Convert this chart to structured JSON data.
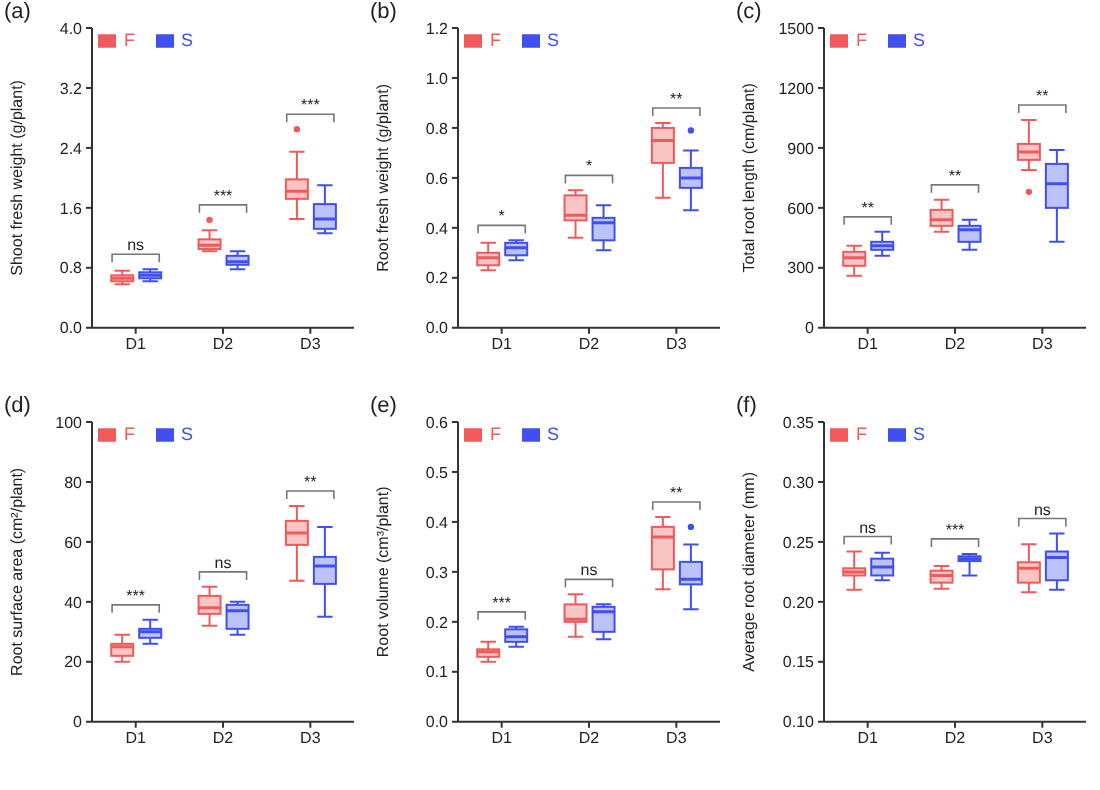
{
  "chart_data": [
    {
      "type": "box",
      "title": "(a)",
      "ylabel": "Shoot fresh weight (g/plant)",
      "categories": [
        "D1",
        "D2",
        "D3"
      ],
      "ylim": [
        0,
        4
      ],
      "yticks": [
        {
          "value": 0,
          "label": "0.0"
        },
        0.8,
        1.6,
        2.4,
        3.2,
        {
          "value": 4,
          "label": "4.0"
        }
      ],
      "legend": "top left",
      "annotations": [
        "ns",
        "***",
        "***"
      ],
      "series": [
        {
          "name": "F",
          "color": "#f05a5a",
          "boxes": [
            {
              "low": 0.58,
              "q1": 0.62,
              "median": 0.66,
              "q3": 0.7,
              "high": 0.76
            },
            {
              "low": 1.02,
              "q1": 1.05,
              "median": 1.1,
              "q3": 1.18,
              "high": 1.3,
              "outliers": [
                1.44
              ]
            },
            {
              "low": 1.45,
              "q1": 1.72,
              "median": 1.82,
              "q3": 1.98,
              "high": 2.35,
              "outliers": [
                2.65
              ]
            }
          ]
        },
        {
          "name": "S",
          "color": "#3f4ff0",
          "boxes": [
            {
              "low": 0.62,
              "q1": 0.66,
              "median": 0.7,
              "q3": 0.74,
              "high": 0.78
            },
            {
              "low": 0.78,
              "q1": 0.84,
              "median": 0.88,
              "q3": 0.96,
              "high": 1.02
            },
            {
              "low": 1.26,
              "q1": 1.32,
              "median": 1.45,
              "q3": 1.65,
              "high": 1.9
            }
          ]
        }
      ]
    },
    {
      "type": "box",
      "title": "(b)",
      "ylabel": "Root fresh weight (g/plant)",
      "categories": [
        "D1",
        "D2",
        "D3"
      ],
      "ylim": [
        0,
        1.2
      ],
      "yticks": [
        {
          "value": 0,
          "label": "0.0"
        },
        0.2,
        0.4,
        0.6,
        0.8,
        {
          "value": 1,
          "label": "1.0"
        },
        1.2
      ],
      "legend": "top left",
      "annotations": [
        "*",
        "*",
        "**"
      ],
      "series": [
        {
          "name": "F",
          "color": "#f05a5a",
          "boxes": [
            {
              "low": 0.23,
              "q1": 0.25,
              "median": 0.28,
              "q3": 0.3,
              "high": 0.34
            },
            {
              "low": 0.36,
              "q1": 0.43,
              "median": 0.45,
              "q3": 0.53,
              "high": 0.55
            },
            {
              "low": 0.52,
              "q1": 0.66,
              "median": 0.75,
              "q3": 0.8,
              "high": 0.82
            }
          ]
        },
        {
          "name": "S",
          "color": "#3f4ff0",
          "boxes": [
            {
              "low": 0.27,
              "q1": 0.29,
              "median": 0.32,
              "q3": 0.34,
              "high": 0.35
            },
            {
              "low": 0.31,
              "q1": 0.35,
              "median": 0.42,
              "q3": 0.44,
              "high": 0.49
            },
            {
              "low": 0.47,
              "q1": 0.56,
              "median": 0.6,
              "q3": 0.64,
              "high": 0.71,
              "outliers": [
                0.79
              ]
            }
          ]
        }
      ]
    },
    {
      "type": "box",
      "title": "(c)",
      "ylabel": "Total root length (cm/plant)",
      "categories": [
        "D1",
        "D2",
        "D3"
      ],
      "ylim": [
        0,
        1500
      ],
      "yticks": [
        0,
        300,
        600,
        900,
        1200,
        1500
      ],
      "legend": "top left",
      "annotations": [
        "**",
        "**",
        "**"
      ],
      "series": [
        {
          "name": "F",
          "color": "#f05a5a",
          "boxes": [
            {
              "low": 260,
              "q1": 310,
              "median": 350,
              "q3": 380,
              "high": 410
            },
            {
              "low": 480,
              "q1": 510,
              "median": 540,
              "q3": 590,
              "high": 640
            },
            {
              "low": 790,
              "q1": 840,
              "median": 880,
              "q3": 920,
              "high": 1040,
              "outliers": [
                680
              ]
            }
          ]
        },
        {
          "name": "S",
          "color": "#3f4ff0",
          "boxes": [
            {
              "low": 360,
              "q1": 390,
              "median": 410,
              "q3": 430,
              "high": 480
            },
            {
              "low": 390,
              "q1": 430,
              "median": 490,
              "q3": 510,
              "high": 540
            },
            {
              "low": 430,
              "q1": 600,
              "median": 720,
              "q3": 820,
              "high": 890
            }
          ]
        }
      ]
    },
    {
      "type": "box",
      "title": "(d)",
      "ylabel": "Root surface area (cm²/plant)",
      "categories": [
        "D1",
        "D2",
        "D3"
      ],
      "ylim": [
        0,
        100
      ],
      "yticks": [
        0,
        20,
        40,
        60,
        80,
        100
      ],
      "legend": "top left",
      "annotations": [
        "***",
        "ns",
        "**"
      ],
      "series": [
        {
          "name": "F",
          "color": "#f05a5a",
          "boxes": [
            {
              "low": 20,
              "q1": 22,
              "median": 25,
              "q3": 26,
              "high": 29
            },
            {
              "low": 32,
              "q1": 36,
              "median": 38,
              "q3": 42,
              "high": 45
            },
            {
              "low": 47,
              "q1": 59,
              "median": 63,
              "q3": 67,
              "high": 72
            }
          ]
        },
        {
          "name": "S",
          "color": "#3f4ff0",
          "boxes": [
            {
              "low": 26,
              "q1": 28,
              "median": 30,
              "q3": 31,
              "high": 34
            },
            {
              "low": 29,
              "q1": 31,
              "median": 37,
              "q3": 39,
              "high": 40
            },
            {
              "low": 35,
              "q1": 46,
              "median": 52,
              "q3": 55,
              "high": 65
            }
          ]
        }
      ]
    },
    {
      "type": "box",
      "title": "(e)",
      "ylabel": "Root volume (cm³/plant)",
      "categories": [
        "D1",
        "D2",
        "D3"
      ],
      "ylim": [
        0,
        0.6
      ],
      "yticks": [
        {
          "value": 0,
          "label": "0.0"
        },
        0.1,
        0.2,
        0.3,
        0.4,
        0.5,
        0.6
      ],
      "legend": "top left",
      "annotations": [
        "***",
        "ns",
        "**"
      ],
      "series": [
        {
          "name": "F",
          "color": "#f05a5a",
          "boxes": [
            {
              "low": 0.12,
              "q1": 0.13,
              "median": 0.14,
              "q3": 0.145,
              "high": 0.16
            },
            {
              "low": 0.17,
              "q1": 0.2,
              "median": 0.205,
              "q3": 0.235,
              "high": 0.255
            },
            {
              "low": 0.265,
              "q1": 0.305,
              "median": 0.37,
              "q3": 0.39,
              "high": 0.41
            }
          ]
        },
        {
          "name": "S",
          "color": "#3f4ff0",
          "boxes": [
            {
              "low": 0.15,
              "q1": 0.16,
              "median": 0.17,
              "q3": 0.185,
              "high": 0.19
            },
            {
              "low": 0.165,
              "q1": 0.18,
              "median": 0.22,
              "q3": 0.23,
              "high": 0.235
            },
            {
              "low": 0.225,
              "q1": 0.275,
              "median": 0.285,
              "q3": 0.32,
              "high": 0.355,
              "outliers": [
                0.39
              ]
            }
          ]
        }
      ]
    },
    {
      "type": "box",
      "title": "(f)",
      "ylabel": "Average root diameter (mm)",
      "categories": [
        "D1",
        "D2",
        "D3"
      ],
      "ylim": [
        0.1,
        0.35
      ],
      "yticks": [
        {
          "value": 0.1,
          "label": "0.10"
        },
        0.15,
        {
          "value": 0.2,
          "label": "0.20"
        },
        0.25,
        {
          "value": 0.3,
          "label": "0.30"
        },
        0.35
      ],
      "legend": "top left",
      "annotations": [
        "ns",
        "***",
        "ns"
      ],
      "series": [
        {
          "name": "F",
          "color": "#f05a5a",
          "boxes": [
            {
              "low": 0.21,
              "q1": 0.222,
              "median": 0.225,
              "q3": 0.228,
              "high": 0.242
            },
            {
              "low": 0.211,
              "q1": 0.216,
              "median": 0.222,
              "q3": 0.226,
              "high": 0.23
            },
            {
              "low": 0.208,
              "q1": 0.216,
              "median": 0.228,
              "q3": 0.233,
              "high": 0.248
            }
          ]
        },
        {
          "name": "S",
          "color": "#3f4ff0",
          "boxes": [
            {
              "low": 0.218,
              "q1": 0.222,
              "median": 0.229,
              "q3": 0.236,
              "high": 0.241
            },
            {
              "low": 0.222,
              "q1": 0.234,
              "median": 0.236,
              "q3": 0.238,
              "high": 0.24
            },
            {
              "low": 0.21,
              "q1": 0.218,
              "median": 0.237,
              "q3": 0.242,
              "high": 0.257
            }
          ]
        }
      ]
    }
  ]
}
